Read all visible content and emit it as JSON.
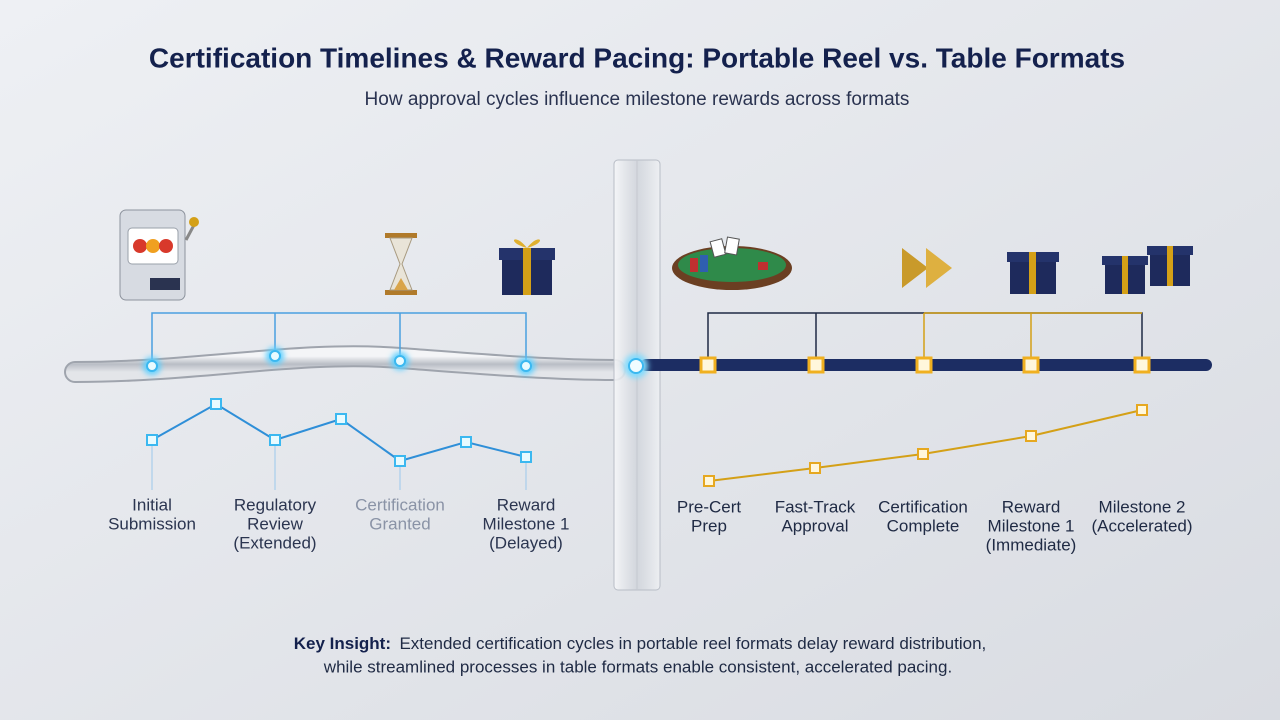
{
  "header": {
    "title": "Certification Timelines & Reward Pacing: Portable Reel vs. Table Formats",
    "subtitle": "How approval cycles influence milestone rewards across formats"
  },
  "left": {
    "steps": [
      {
        "lines": [
          "Initial",
          "Submission"
        ]
      },
      {
        "lines": [
          "Regulatory",
          "Review",
          "(Extended)"
        ]
      },
      {
        "lines": [
          "Certification",
          "Granted"
        ]
      },
      {
        "lines": [
          "Reward",
          "Milestone 1",
          "(Delayed)"
        ]
      }
    ]
  },
  "right": {
    "steps": [
      {
        "lines": [
          "Pre-Cert",
          "Prep"
        ]
      },
      {
        "lines": [
          "Fast-Track",
          "Approval"
        ]
      },
      {
        "lines": [
          "Certification",
          "Complete"
        ]
      },
      {
        "lines": [
          "Reward",
          "Milestone 1",
          "(Immediate)"
        ]
      },
      {
        "lines": [
          "Milestone 2",
          "(Accelerated)"
        ]
      }
    ]
  },
  "insight": {
    "label": "Key Insight:",
    "lines": [
      "Extended certification cycles in portable reel formats delay reward distribution,",
      "while streamlined processes in table formats enable consistent, accelerated pacing."
    ]
  }
}
